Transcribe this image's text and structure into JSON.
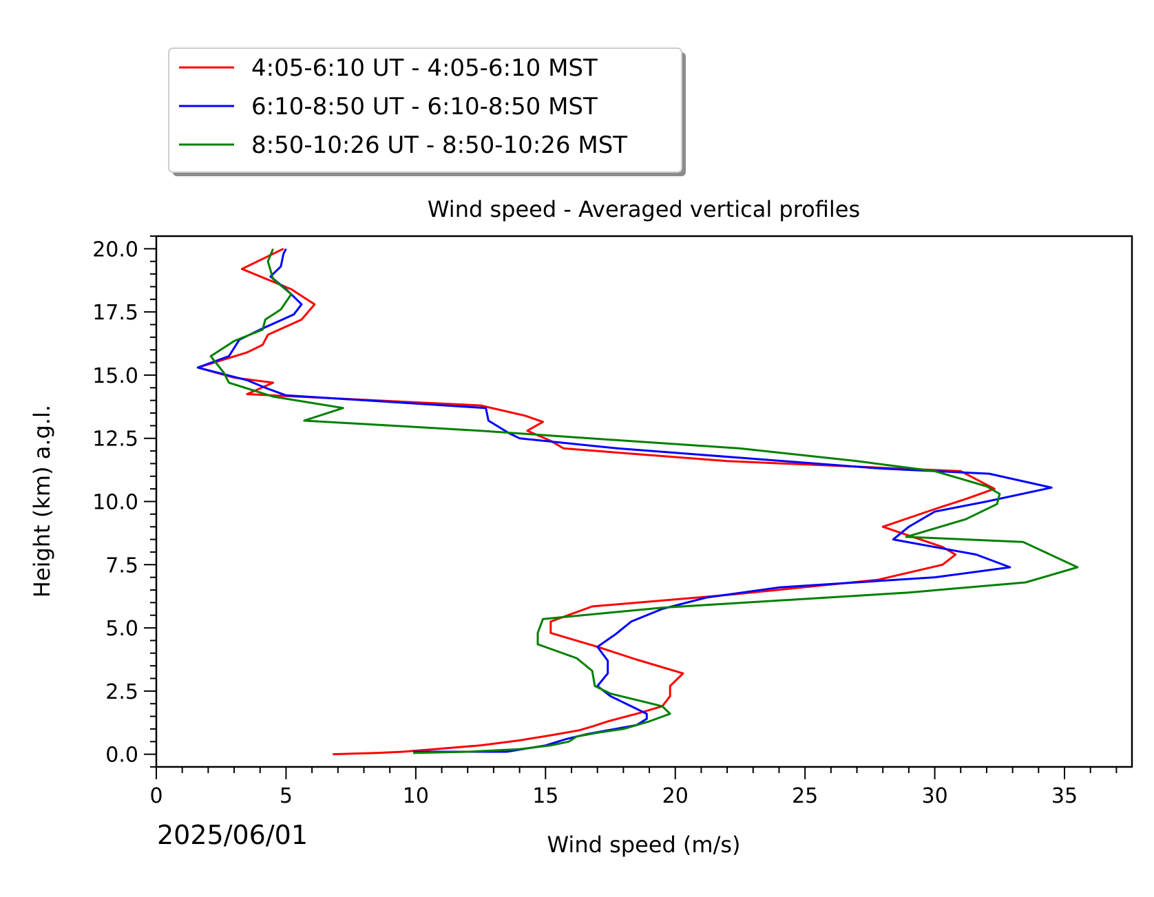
{
  "chart_data": {
    "type": "line",
    "title": "Wind speed - Averaged vertical profiles",
    "xlabel": "Wind speed (m/s)",
    "ylabel": "Height (km) a.g.l.",
    "date_label": "2025/06/01",
    "xlim": [
      0,
      37.6
    ],
    "ylim": [
      -0.5,
      20.5
    ],
    "x_ticks": [
      0,
      5,
      10,
      15,
      20,
      25,
      30,
      35
    ],
    "y_ticks": [
      0.0,
      2.5,
      5.0,
      7.5,
      10.0,
      12.5,
      15.0,
      17.5,
      20.0
    ],
    "x_tick_labels": [
      "0",
      "5",
      "10",
      "15",
      "20",
      "25",
      "30",
      "35"
    ],
    "y_tick_labels": [
      "0.0",
      "2.5",
      "5.0",
      "7.5",
      "10.0",
      "12.5",
      "15.0",
      "17.5",
      "20.0"
    ],
    "legend_position": "above-left",
    "series": [
      {
        "name": "4:05-6:10 UT - 4:05-6:10 MST",
        "color": "#ff0000",
        "points": [
          [
            6.8,
            0.0
          ],
          [
            8.5,
            0.05
          ],
          [
            9.5,
            0.1
          ],
          [
            12.5,
            0.35
          ],
          [
            14.0,
            0.55
          ],
          [
            15.2,
            0.75
          ],
          [
            16.3,
            0.95
          ],
          [
            16.8,
            1.1
          ],
          [
            17.4,
            1.3
          ],
          [
            18.5,
            1.6
          ],
          [
            19.5,
            1.9
          ],
          [
            19.8,
            2.3
          ],
          [
            19.8,
            2.7
          ],
          [
            20.3,
            3.2
          ],
          [
            18.5,
            3.75
          ],
          [
            17.0,
            4.25
          ],
          [
            15.2,
            4.8
          ],
          [
            15.2,
            5.25
          ],
          [
            16.8,
            5.85
          ],
          [
            22.0,
            6.3
          ],
          [
            27.8,
            6.9
          ],
          [
            30.3,
            7.5
          ],
          [
            30.8,
            7.9
          ],
          [
            30.3,
            8.2
          ],
          [
            28.0,
            9.0
          ],
          [
            30.0,
            9.7
          ],
          [
            31.2,
            10.1
          ],
          [
            32.3,
            10.5
          ],
          [
            31.0,
            11.2
          ],
          [
            22.0,
            11.6
          ],
          [
            15.7,
            12.1
          ],
          [
            15.2,
            12.4
          ],
          [
            14.3,
            12.8
          ],
          [
            14.9,
            13.15
          ],
          [
            14.2,
            13.4
          ],
          [
            12.5,
            13.8
          ],
          [
            6.5,
            14.1
          ],
          [
            3.5,
            14.25
          ],
          [
            4.5,
            14.7
          ],
          [
            3.0,
            14.9
          ],
          [
            1.6,
            15.3
          ],
          [
            3.5,
            15.9
          ],
          [
            4.1,
            16.2
          ],
          [
            4.3,
            16.6
          ],
          [
            5.6,
            17.2
          ],
          [
            6.1,
            17.8
          ],
          [
            5.2,
            18.4
          ],
          [
            3.3,
            19.2
          ],
          [
            4.5,
            19.8
          ],
          [
            4.9,
            20.0
          ]
        ]
      },
      {
        "name": "6:10-8:50 UT - 6:10-8:50 MST",
        "color": "#0000ff",
        "points": [
          [
            9.9,
            0.1
          ],
          [
            13.5,
            0.1
          ],
          [
            15.0,
            0.35
          ],
          [
            15.8,
            0.6
          ],
          [
            16.6,
            0.8
          ],
          [
            18.5,
            1.15
          ],
          [
            18.9,
            1.4
          ],
          [
            18.9,
            1.6
          ],
          [
            17.5,
            2.3
          ],
          [
            17.0,
            2.7
          ],
          [
            17.4,
            3.2
          ],
          [
            17.4,
            3.7
          ],
          [
            17.0,
            4.25
          ],
          [
            17.7,
            4.75
          ],
          [
            18.3,
            5.25
          ],
          [
            19.5,
            5.75
          ],
          [
            21.2,
            6.2
          ],
          [
            24.0,
            6.6
          ],
          [
            30.0,
            7.0
          ],
          [
            32.9,
            7.4
          ],
          [
            31.6,
            7.9
          ],
          [
            28.4,
            8.5
          ],
          [
            29.0,
            9.0
          ],
          [
            30.0,
            9.6
          ],
          [
            32.0,
            10.0
          ],
          [
            34.5,
            10.55
          ],
          [
            32.1,
            11.1
          ],
          [
            28.0,
            11.3
          ],
          [
            17.8,
            12.1
          ],
          [
            14.0,
            12.5
          ],
          [
            13.6,
            12.7
          ],
          [
            12.8,
            13.2
          ],
          [
            12.7,
            13.7
          ],
          [
            5.0,
            14.2
          ],
          [
            4.2,
            14.5
          ],
          [
            3.5,
            14.8
          ],
          [
            1.6,
            15.3
          ],
          [
            2.8,
            15.75
          ],
          [
            3.2,
            16.4
          ],
          [
            4.0,
            16.8
          ],
          [
            5.3,
            17.4
          ],
          [
            5.6,
            17.8
          ],
          [
            5.0,
            18.4
          ],
          [
            4.4,
            18.9
          ],
          [
            4.8,
            19.3
          ],
          [
            4.9,
            19.8
          ],
          [
            5.0,
            20.0
          ]
        ]
      },
      {
        "name": "8:50-10:26 UT - 8:50-10:26 MST",
        "color": "#008000",
        "points": [
          [
            9.9,
            0.05
          ],
          [
            12.0,
            0.1
          ],
          [
            14.0,
            0.2
          ],
          [
            15.2,
            0.35
          ],
          [
            15.9,
            0.5
          ],
          [
            16.2,
            0.7
          ],
          [
            17.0,
            0.85
          ],
          [
            18.0,
            1.0
          ],
          [
            19.0,
            1.3
          ],
          [
            19.8,
            1.6
          ],
          [
            19.5,
            1.9
          ],
          [
            17.5,
            2.4
          ],
          [
            16.9,
            2.7
          ],
          [
            16.8,
            3.3
          ],
          [
            16.2,
            3.8
          ],
          [
            14.7,
            4.35
          ],
          [
            14.7,
            4.8
          ],
          [
            14.9,
            5.35
          ],
          [
            19.5,
            5.8
          ],
          [
            29.0,
            6.4
          ],
          [
            33.5,
            6.8
          ],
          [
            35.5,
            7.4
          ],
          [
            33.4,
            8.4
          ],
          [
            28.9,
            8.6
          ],
          [
            31.2,
            9.3
          ],
          [
            32.4,
            9.9
          ],
          [
            32.5,
            10.3
          ],
          [
            32.0,
            10.6
          ],
          [
            30.0,
            11.2
          ],
          [
            27.0,
            11.6
          ],
          [
            22.5,
            12.1
          ],
          [
            16.0,
            12.55
          ],
          [
            12.5,
            12.8
          ],
          [
            5.7,
            13.2
          ],
          [
            7.2,
            13.7
          ],
          [
            4.5,
            14.15
          ],
          [
            2.8,
            14.7
          ],
          [
            2.6,
            15.1
          ],
          [
            2.1,
            15.75
          ],
          [
            3.0,
            16.35
          ],
          [
            4.1,
            16.8
          ],
          [
            4.2,
            17.2
          ],
          [
            4.8,
            17.6
          ],
          [
            5.2,
            18.2
          ],
          [
            4.5,
            18.8
          ],
          [
            4.3,
            19.5
          ],
          [
            4.5,
            20.0
          ]
        ]
      }
    ]
  }
}
